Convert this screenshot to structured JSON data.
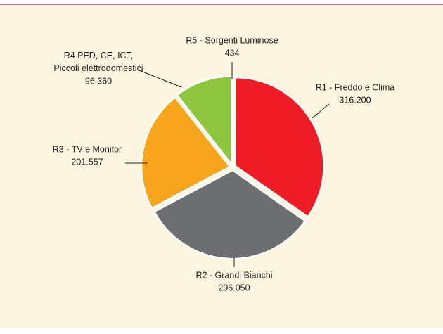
{
  "chart_data": {
    "type": "pie",
    "categories": [
      "R1 - Freddo e Clima",
      "R2 - Grandi Bianchi",
      "R3 - TV e Monitor",
      "R4 PED, CE, ICT,\nPiccoli elettrodomestici",
      "R5 - Sorgenti Luminose"
    ],
    "values": [
      316200,
      296050,
      201557,
      96360,
      434
    ],
    "value_labels": [
      "316.200",
      "296.050",
      "201.557",
      "96.360",
      "434"
    ],
    "colors": [
      "#ee1c25",
      "#6d6e71",
      "#f7a51c",
      "#8dc63f",
      "#3b2b6e"
    ]
  }
}
